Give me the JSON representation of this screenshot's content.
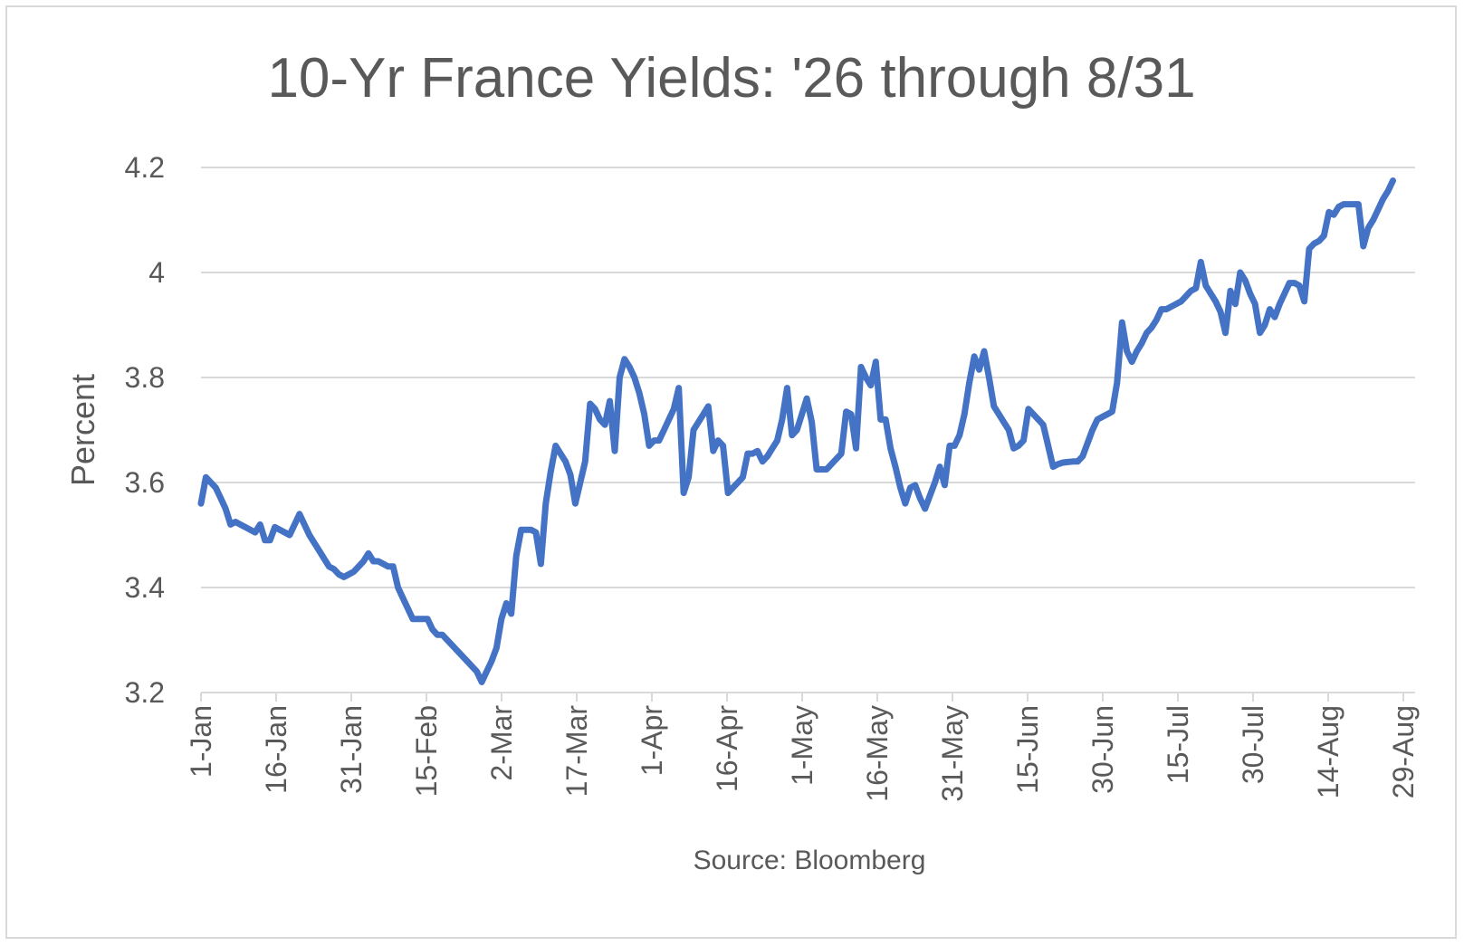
{
  "chart_data": {
    "type": "line",
    "title": "10-Yr France Yields: '26 through 8/31",
    "ylabel": "Percent",
    "xlabel": "Source: Bloomberg",
    "ylim": [
      3.2,
      4.2
    ],
    "yticks": [
      "3.2",
      "3.4",
      "3.6",
      "3.8",
      "4",
      "4.2"
    ],
    "xtick_labels": [
      "1-Jan",
      "16-Jan",
      "31-Jan",
      "15-Feb",
      "2-Mar",
      "17-Mar",
      "1-Apr",
      "16-Apr",
      "1-May",
      "16-May",
      "31-May",
      "15-Jun",
      "30-Jun",
      "15-Jul",
      "30-Jul",
      "14-Aug",
      "29-Aug"
    ],
    "grid": "horizontal",
    "series": [
      {
        "color": "#4472c4",
        "points": [
          [
            0,
            3.56
          ],
          [
            1,
            3.61
          ],
          [
            2,
            3.6
          ],
          [
            3,
            3.59
          ],
          [
            4,
            3.57
          ],
          [
            5,
            3.55
          ],
          [
            6,
            3.52
          ],
          [
            7,
            3.525
          ],
          [
            8,
            3.52
          ],
          [
            9,
            3.515
          ],
          [
            10,
            3.51
          ],
          [
            11,
            3.505
          ],
          [
            12,
            3.52
          ],
          [
            13,
            3.49
          ],
          [
            14,
            3.49
          ],
          [
            15,
            3.515
          ],
          [
            16,
            3.51
          ],
          [
            17,
            3.505
          ],
          [
            18,
            3.5
          ],
          [
            19,
            3.52
          ],
          [
            20,
            3.54
          ],
          [
            21,
            3.52
          ],
          [
            22,
            3.5
          ],
          [
            23,
            3.485
          ],
          [
            24,
            3.47
          ],
          [
            25,
            3.455
          ],
          [
            26,
            3.44
          ],
          [
            27,
            3.435
          ],
          [
            28,
            3.425
          ],
          [
            29,
            3.42
          ],
          [
            30,
            3.425
          ],
          [
            31,
            3.43
          ],
          [
            32,
            3.44
          ],
          [
            33,
            3.45
          ],
          [
            34,
            3.465
          ],
          [
            35,
            3.45
          ],
          [
            36,
            3.45
          ],
          [
            37,
            3.445
          ],
          [
            38,
            3.44
          ],
          [
            39,
            3.44
          ],
          [
            40,
            3.4
          ],
          [
            41,
            3.38
          ],
          [
            42,
            3.36
          ],
          [
            43,
            3.34
          ],
          [
            44,
            3.34
          ],
          [
            45,
            3.34
          ],
          [
            46,
            3.34
          ],
          [
            47,
            3.32
          ],
          [
            48,
            3.31
          ],
          [
            49,
            3.31
          ],
          [
            50,
            3.3
          ],
          [
            51,
            3.29
          ],
          [
            52,
            3.28
          ],
          [
            53,
            3.27
          ],
          [
            54,
            3.26
          ],
          [
            55,
            3.25
          ],
          [
            56,
            3.24
          ],
          [
            57,
            3.22
          ],
          [
            58,
            3.24
          ],
          [
            59,
            3.26
          ],
          [
            60,
            3.285
          ],
          [
            61,
            3.34
          ],
          [
            62,
            3.37
          ],
          [
            63,
            3.35
          ],
          [
            64,
            3.46
          ],
          [
            65,
            3.51
          ],
          [
            66,
            3.51
          ],
          [
            67,
            3.51
          ],
          [
            68,
            3.505
          ],
          [
            69,
            3.445
          ],
          [
            70,
            3.56
          ],
          [
            71,
            3.62
          ],
          [
            72,
            3.67
          ],
          [
            73,
            3.655
          ],
          [
            74,
            3.64
          ],
          [
            75,
            3.615
          ],
          [
            76,
            3.56
          ],
          [
            77,
            3.6
          ],
          [
            78,
            3.64
          ],
          [
            79,
            3.75
          ],
          [
            80,
            3.74
          ],
          [
            81,
            3.72
          ],
          [
            82,
            3.71
          ],
          [
            83,
            3.755
          ],
          [
            84,
            3.66
          ],
          [
            85,
            3.8
          ],
          [
            86,
            3.835
          ],
          [
            87,
            3.82
          ],
          [
            88,
            3.8
          ],
          [
            89,
            3.77
          ],
          [
            90,
            3.73
          ],
          [
            91,
            3.67
          ],
          [
            92,
            3.68
          ],
          [
            93,
            3.68
          ],
          [
            94,
            3.7
          ],
          [
            95,
            3.72
          ],
          [
            96,
            3.74
          ],
          [
            97,
            3.78
          ],
          [
            98,
            3.58
          ],
          [
            99,
            3.61
          ],
          [
            100,
            3.7
          ],
          [
            101,
            3.715
          ],
          [
            102,
            3.73
          ],
          [
            103,
            3.745
          ],
          [
            104,
            3.66
          ],
          [
            105,
            3.68
          ],
          [
            106,
            3.67
          ],
          [
            107,
            3.58
          ],
          [
            108,
            3.59
          ],
          [
            109,
            3.6
          ],
          [
            110,
            3.61
          ],
          [
            111,
            3.655
          ],
          [
            112,
            3.655
          ],
          [
            113,
            3.66
          ],
          [
            114,
            3.64
          ],
          [
            115,
            3.65
          ],
          [
            116,
            3.665
          ],
          [
            117,
            3.68
          ],
          [
            118,
            3.72
          ],
          [
            119,
            3.78
          ],
          [
            120,
            3.69
          ],
          [
            121,
            3.7
          ],
          [
            122,
            3.73
          ],
          [
            123,
            3.76
          ],
          [
            124,
            3.715
          ],
          [
            125,
            3.625
          ],
          [
            126,
            3.625
          ],
          [
            127,
            3.625
          ],
          [
            128,
            3.635
          ],
          [
            129,
            3.645
          ],
          [
            130,
            3.655
          ],
          [
            131,
            3.735
          ],
          [
            132,
            3.73
          ],
          [
            133,
            3.665
          ],
          [
            134,
            3.82
          ],
          [
            135,
            3.8
          ],
          [
            136,
            3.785
          ],
          [
            137,
            3.83
          ],
          [
            138,
            3.72
          ],
          [
            139,
            3.72
          ],
          [
            140,
            3.665
          ],
          [
            141,
            3.63
          ],
          [
            142,
            3.59
          ],
          [
            143,
            3.56
          ],
          [
            144,
            3.59
          ],
          [
            145,
            3.595
          ],
          [
            146,
            3.57
          ],
          [
            147,
            3.55
          ],
          [
            148,
            3.575
          ],
          [
            149,
            3.6
          ],
          [
            150,
            3.63
          ],
          [
            151,
            3.595
          ],
          [
            152,
            3.67
          ],
          [
            153,
            3.67
          ],
          [
            154,
            3.69
          ],
          [
            155,
            3.73
          ],
          [
            156,
            3.79
          ],
          [
            157,
            3.84
          ],
          [
            158,
            3.815
          ],
          [
            159,
            3.85
          ],
          [
            160,
            3.8
          ],
          [
            161,
            3.745
          ],
          [
            162,
            3.73
          ],
          [
            163,
            3.715
          ],
          [
            164,
            3.7
          ],
          [
            165,
            3.665
          ],
          [
            166,
            3.67
          ],
          [
            167,
            3.68
          ],
          [
            168,
            3.74
          ],
          [
            169,
            3.73
          ],
          [
            170,
            3.72
          ],
          [
            171,
            3.71
          ],
          [
            172,
            3.67
          ],
          [
            173,
            3.63
          ],
          [
            174,
            3.635
          ],
          [
            175,
            3.638
          ],
          [
            176,
            3.639
          ],
          [
            177,
            3.64
          ],
          [
            178,
            3.64
          ],
          [
            179,
            3.65
          ],
          [
            180,
            3.675
          ],
          [
            181,
            3.7
          ],
          [
            182,
            3.72
          ],
          [
            183,
            3.725
          ],
          [
            184,
            3.73
          ],
          [
            185,
            3.735
          ],
          [
            186,
            3.79
          ],
          [
            187,
            3.905
          ],
          [
            188,
            3.85
          ],
          [
            189,
            3.83
          ],
          [
            190,
            3.85
          ],
          [
            191,
            3.865
          ],
          [
            192,
            3.885
          ],
          [
            193,
            3.895
          ],
          [
            194,
            3.91
          ],
          [
            195,
            3.93
          ],
          [
            196,
            3.93
          ],
          [
            197,
            3.935
          ],
          [
            198,
            3.94
          ],
          [
            199,
            3.945
          ],
          [
            200,
            3.955
          ],
          [
            201,
            3.965
          ],
          [
            202,
            3.97
          ],
          [
            203,
            4.02
          ],
          [
            204,
            3.975
          ],
          [
            205,
            3.96
          ],
          [
            206,
            3.945
          ],
          [
            207,
            3.925
          ],
          [
            208,
            3.885
          ],
          [
            209,
            3.965
          ],
          [
            210,
            3.94
          ],
          [
            211,
            4.0
          ],
          [
            212,
            3.985
          ],
          [
            213,
            3.96
          ],
          [
            214,
            3.94
          ],
          [
            215,
            3.885
          ],
          [
            216,
            3.9
          ],
          [
            217,
            3.93
          ],
          [
            218,
            3.915
          ],
          [
            219,
            3.94
          ],
          [
            220,
            3.96
          ],
          [
            221,
            3.98
          ],
          [
            222,
            3.98
          ],
          [
            223,
            3.975
          ],
          [
            224,
            3.945
          ],
          [
            225,
            4.045
          ],
          [
            226,
            4.055
          ],
          [
            227,
            4.06
          ],
          [
            228,
            4.07
          ],
          [
            229,
            4.115
          ],
          [
            230,
            4.11
          ],
          [
            231,
            4.125
          ],
          [
            232,
            4.13
          ],
          [
            233,
            4.13
          ],
          [
            234,
            4.13
          ],
          [
            235,
            4.13
          ],
          [
            236,
            4.05
          ],
          [
            237,
            4.085
          ],
          [
            238,
            4.1
          ],
          [
            239,
            4.12
          ],
          [
            240,
            4.14
          ],
          [
            241,
            4.155
          ],
          [
            242,
            4.175
          ]
        ]
      }
    ]
  }
}
